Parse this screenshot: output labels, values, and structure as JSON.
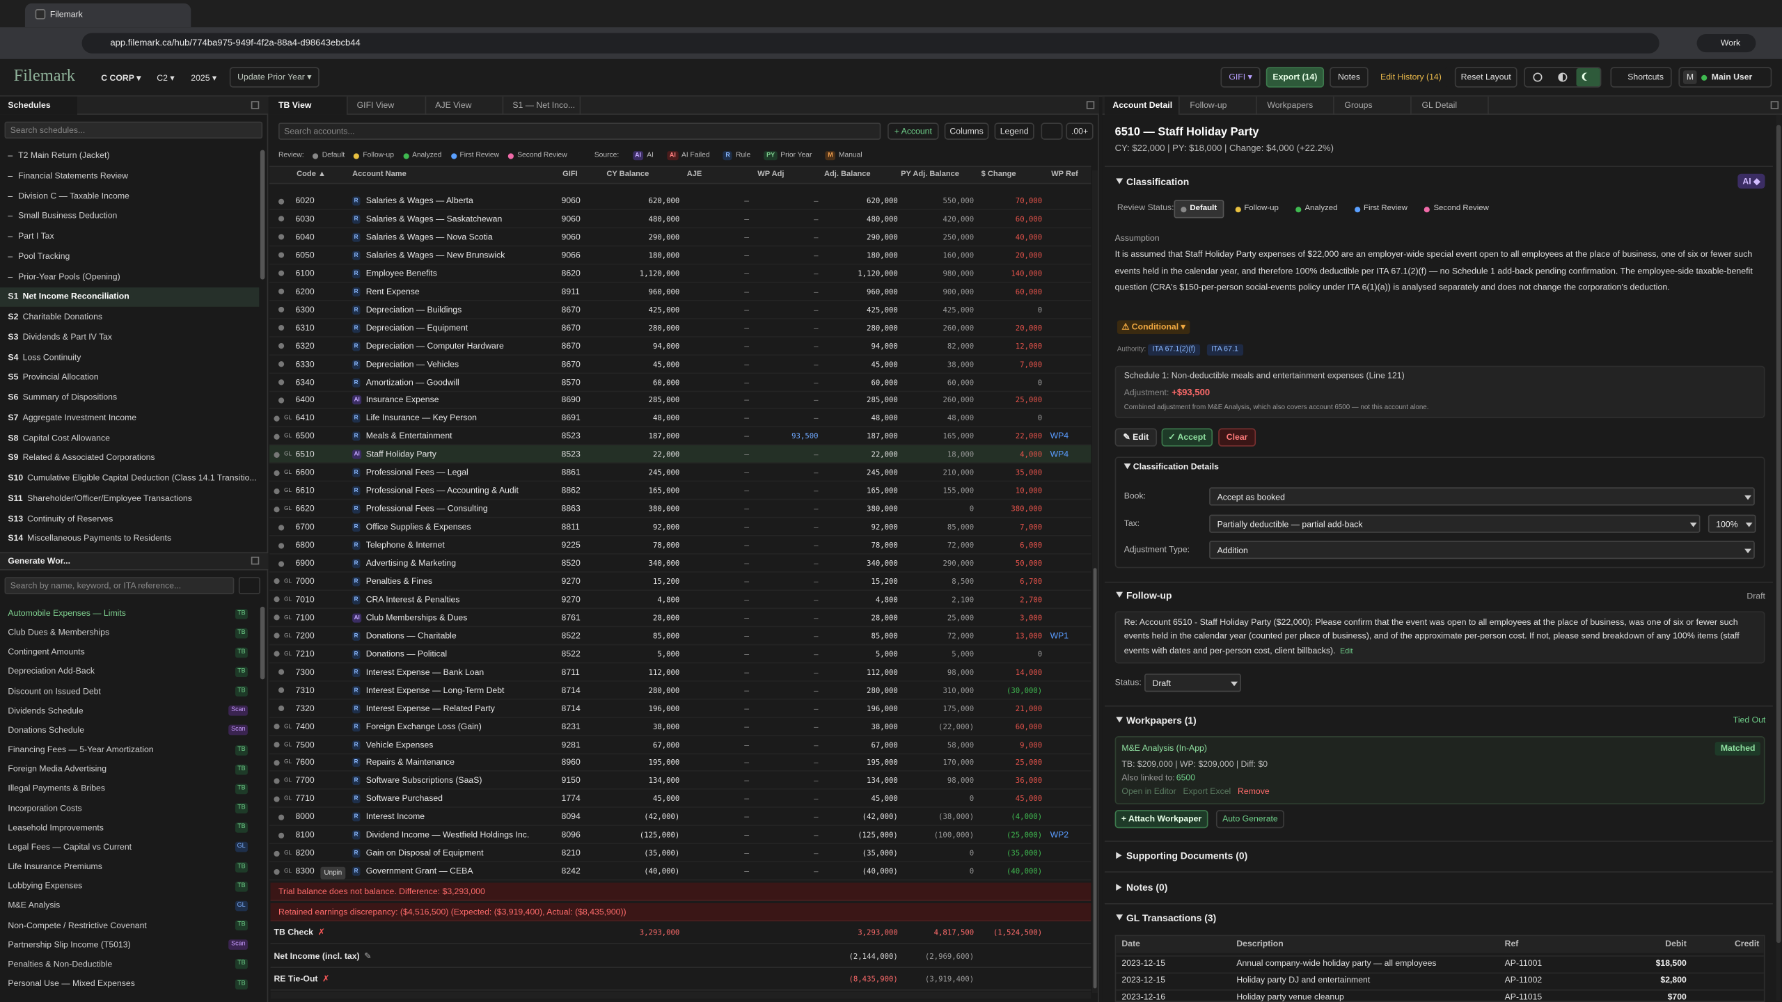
{
  "browser": {
    "tab": "Filemark",
    "url": "app.filemark.ca/hub/774ba975-949f-4f2a-88a4-d98643ebcb44",
    "profile": "Work"
  },
  "app": {
    "logo": "Filemark",
    "entity": "C CORP ▾",
    "form": "C2 ▾",
    "year": "2025 ▾",
    "update": "Update Prior Year ▾",
    "gifi": "GIFI ▾",
    "export": "Export (14)",
    "notes": "Notes",
    "history": "Edit History (14)",
    "reset": "Reset Layout",
    "shortcuts": "Shortcuts",
    "user_initial": "M",
    "user": "Main User"
  },
  "schedules": {
    "title": "Schedules",
    "search": "Search schedules...",
    "items": [
      {
        "code": "–",
        "name": "T2 Main Return (Jacket)"
      },
      {
        "code": "–",
        "name": "Financial Statements Review"
      },
      {
        "code": "–",
        "name": "Division C — Taxable Income"
      },
      {
        "code": "–",
        "name": "Small Business Deduction"
      },
      {
        "code": "–",
        "name": "Part I Tax"
      },
      {
        "code": "–",
        "name": "Pool Tracking"
      },
      {
        "code": "–",
        "name": "Prior-Year Pools (Opening)"
      },
      {
        "code": "S1",
        "name": "Net Income Reconciliation"
      },
      {
        "code": "S2",
        "name": "Charitable Donations"
      },
      {
        "code": "S3",
        "name": "Dividends & Part IV Tax"
      },
      {
        "code": "S4",
        "name": "Loss Continuity"
      },
      {
        "code": "S5",
        "name": "Provincial Allocation"
      },
      {
        "code": "S6",
        "name": "Summary of Dispositions"
      },
      {
        "code": "S7",
        "name": "Aggregate Investment Income"
      },
      {
        "code": "S8",
        "name": "Capital Cost Allowance"
      },
      {
        "code": "S9",
        "name": "Related & Associated Corporations"
      },
      {
        "code": "S10",
        "name": "Cumulative Eligible Capital Deduction (Class 14.1 Transitio..."
      },
      {
        "code": "S11",
        "name": "Shareholder/Officer/Employee Transactions"
      },
      {
        "code": "S13",
        "name": "Continuity of Reserves"
      },
      {
        "code": "S14",
        "name": "Miscellaneous Payments to Residents"
      }
    ]
  },
  "generate": {
    "title": "Generate Wor...",
    "search": "Search by name, keyword, or ITA reference...",
    "items": [
      {
        "name": "Automobile Expenses — Limits",
        "badge": "TB"
      },
      {
        "name": "Club Dues & Memberships",
        "badge": "TB"
      },
      {
        "name": "Contingent Amounts",
        "badge": "TB"
      },
      {
        "name": "Depreciation Add-Back",
        "badge": "TB"
      },
      {
        "name": "Discount on Issued Debt",
        "badge": "TB"
      },
      {
        "name": "Dividends Schedule",
        "badge": "Scan"
      },
      {
        "name": "Donations Schedule",
        "badge": "Scan"
      },
      {
        "name": "Financing Fees — 5-Year Amortization",
        "badge": "TB"
      },
      {
        "name": "Foreign Media Advertising",
        "badge": "TB"
      },
      {
        "name": "Illegal Payments & Bribes",
        "badge": "TB"
      },
      {
        "name": "Incorporation Costs",
        "badge": "TB"
      },
      {
        "name": "Leasehold Improvements",
        "badge": "TB"
      },
      {
        "name": "Legal Fees — Capital vs Current",
        "badge": "GL"
      },
      {
        "name": "Life Insurance Premiums",
        "badge": "TB"
      },
      {
        "name": "Lobbying Expenses",
        "badge": "TB"
      },
      {
        "name": "M&E Analysis",
        "badge": "GL"
      },
      {
        "name": "Non-Compete / Restrictive Covenant",
        "badge": "TB"
      },
      {
        "name": "Partnership Slip Income (T5013)",
        "badge": "Scan"
      },
      {
        "name": "Penalties & Non-Deductible",
        "badge": "TB"
      },
      {
        "name": "Personal Use — Mixed Expenses",
        "badge": "TB"
      }
    ]
  },
  "tb": {
    "tabs": [
      "TB View",
      "GIFI View",
      "AJE View",
      "S1 — Net Inco..."
    ],
    "search": "Search accounts...",
    "add": "+ Account",
    "columns": "Columns",
    "legend": "Legend",
    "decimals": ".00+",
    "review_label": "Review:",
    "review": [
      "Default",
      "Follow-up",
      "Analyzed",
      "First Review",
      "Second Review"
    ],
    "source_label": "Source:",
    "sources": [
      {
        "badge": "AI",
        "name": "AI"
      },
      {
        "badge": "AI",
        "name": "AI Failed"
      },
      {
        "badge": "R",
        "name": "Rule"
      },
      {
        "badge": "PY",
        "name": "Prior Year"
      },
      {
        "badge": "M",
        "name": "Manual"
      }
    ],
    "headers": [
      "Code ▲",
      "Account Name",
      "GIFI",
      "CY Balance",
      "AJE",
      "WP Adj",
      "Adj. Balance",
      "PY Adj. Balance",
      "$ Change",
      "WP Ref"
    ],
    "rows": [
      [
        "6020",
        "R",
        "Salaries & Wages — Alberta",
        "9060",
        "620,000",
        "–",
        "–",
        "620,000",
        "550,000",
        "70,000",
        null,
        null
      ],
      [
        "6030",
        "R",
        "Salaries & Wages — Saskatchewan",
        "9060",
        "480,000",
        "–",
        "–",
        "480,000",
        "420,000",
        "60,000",
        null,
        null
      ],
      [
        "6040",
        "R",
        "Salaries & Wages — Nova Scotia",
        "9060",
        "290,000",
        "–",
        "–",
        "290,000",
        "250,000",
        "40,000",
        null,
        null
      ],
      [
        "6050",
        "R",
        "Salaries & Wages — New Brunswick",
        "9066",
        "180,000",
        "–",
        "–",
        "180,000",
        "160,000",
        "20,000",
        null,
        null
      ],
      [
        "6100",
        "R",
        "Employee Benefits",
        "8620",
        "1,120,000",
        "–",
        "–",
        "1,120,000",
        "980,000",
        "140,000",
        null,
        null
      ],
      [
        "6200",
        "R",
        "Rent Expense",
        "8911",
        "960,000",
        "–",
        "–",
        "960,000",
        "900,000",
        "60,000",
        null,
        null
      ],
      [
        "6300",
        "R",
        "Depreciation — Buildings",
        "8670",
        "425,000",
        "–",
        "–",
        "425,000",
        "425,000",
        "0",
        null,
        null
      ],
      [
        "6310",
        "R",
        "Depreciation — Equipment",
        "8670",
        "280,000",
        "–",
        "–",
        "280,000",
        "260,000",
        "20,000",
        null,
        null
      ],
      [
        "6320",
        "R",
        "Depreciation — Computer Hardware",
        "8670",
        "94,000",
        "–",
        "–",
        "94,000",
        "82,000",
        "12,000",
        null,
        null
      ],
      [
        "6330",
        "R",
        "Depreciation — Vehicles",
        "8670",
        "45,000",
        "–",
        "–",
        "45,000",
        "38,000",
        "7,000",
        null,
        null
      ],
      [
        "6340",
        "R",
        "Amortization — Goodwill",
        "8570",
        "60,000",
        "–",
        "–",
        "60,000",
        "60,000",
        "0",
        null,
        null
      ],
      [
        "6400",
        "AI",
        "Insurance Expense",
        "8690",
        "285,000",
        "–",
        "–",
        "285,000",
        "260,000",
        "25,000",
        null,
        null
      ],
      [
        "6410",
        "R",
        "Life Insurance — Key Person",
        "8691",
        "48,000",
        "–",
        "–",
        "48,000",
        "48,000",
        "0",
        null,
        "GL"
      ],
      [
        "6500",
        "R",
        "Meals & Entertainment",
        "8523",
        "187,000",
        "–",
        "93,500",
        "187,000",
        "165,000",
        "22,000",
        "WP4",
        "GL"
      ],
      [
        "6510",
        "AI",
        "Staff Holiday Party",
        "8523",
        "22,000",
        "–",
        "–",
        "22,000",
        "18,000",
        "4,000",
        "WP4",
        "GL"
      ],
      [
        "6600",
        "R",
        "Professional Fees — Legal",
        "8861",
        "245,000",
        "–",
        "–",
        "245,000",
        "210,000",
        "35,000",
        null,
        "GL"
      ],
      [
        "6610",
        "R",
        "Professional Fees — Accounting & Audit",
        "8862",
        "165,000",
        "–",
        "–",
        "165,000",
        "155,000",
        "10,000",
        null,
        "GL"
      ],
      [
        "6620",
        "R",
        "Professional Fees — Consulting",
        "8863",
        "380,000",
        "–",
        "–",
        "380,000",
        "0",
        "380,000",
        null,
        "GL"
      ],
      [
        "6700",
        "R",
        "Office Supplies & Expenses",
        "8811",
        "92,000",
        "–",
        "–",
        "92,000",
        "85,000",
        "7,000",
        null,
        null
      ],
      [
        "6800",
        "R",
        "Telephone & Internet",
        "9225",
        "78,000",
        "–",
        "–",
        "78,000",
        "72,000",
        "6,000",
        null,
        null
      ],
      [
        "6900",
        "R",
        "Advertising & Marketing",
        "8520",
        "340,000",
        "–",
        "–",
        "340,000",
        "290,000",
        "50,000",
        null,
        null
      ],
      [
        "7000",
        "R",
        "Penalties & Fines",
        "9270",
        "15,200",
        "–",
        "–",
        "15,200",
        "8,500",
        "6,700",
        null,
        "GL"
      ],
      [
        "7010",
        "R",
        "CRA Interest & Penalties",
        "9270",
        "4,800",
        "–",
        "–",
        "4,800",
        "2,100",
        "2,700",
        null,
        "GL"
      ],
      [
        "7100",
        "AI",
        "Club Memberships & Dues",
        "8761",
        "28,000",
        "–",
        "–",
        "28,000",
        "25,000",
        "3,000",
        null,
        "GL"
      ],
      [
        "7200",
        "R",
        "Donations — Charitable",
        "8522",
        "85,000",
        "–",
        "–",
        "85,000",
        "72,000",
        "13,000",
        "WP1",
        "GL"
      ],
      [
        "7210",
        "R",
        "Donations — Political",
        "8522",
        "5,000",
        "–",
        "–",
        "5,000",
        "5,000",
        "0",
        null,
        "GL"
      ],
      [
        "7300",
        "R",
        "Interest Expense — Bank Loan",
        "8711",
        "112,000",
        "–",
        "–",
        "112,000",
        "98,000",
        "14,000",
        null,
        null
      ],
      [
        "7310",
        "R",
        "Interest Expense — Long-Term Debt",
        "8714",
        "280,000",
        "–",
        "–",
        "280,000",
        "310,000",
        "(30,000)",
        null,
        null
      ],
      [
        "7320",
        "R",
        "Interest Expense — Related Party",
        "8714",
        "196,000",
        "–",
        "–",
        "196,000",
        "175,000",
        "21,000",
        null,
        null
      ],
      [
        "7400",
        "R",
        "Foreign Exchange Loss (Gain)",
        "8231",
        "38,000",
        "–",
        "–",
        "38,000",
        "(22,000)",
        "60,000",
        null,
        "GL"
      ],
      [
        "7500",
        "R",
        "Vehicle Expenses",
        "9281",
        "67,000",
        "–",
        "–",
        "67,000",
        "58,000",
        "9,000",
        null,
        "GL"
      ],
      [
        "7600",
        "R",
        "Repairs & Maintenance",
        "8960",
        "195,000",
        "–",
        "–",
        "195,000",
        "170,000",
        "25,000",
        null,
        "GL"
      ],
      [
        "7700",
        "R",
        "Software Subscriptions (SaaS)",
        "9150",
        "134,000",
        "–",
        "–",
        "134,000",
        "98,000",
        "36,000",
        null,
        "GL"
      ],
      [
        "7710",
        "R",
        "Software Purchased",
        "1774",
        "45,000",
        "–",
        "–",
        "45,000",
        "0",
        "45,000",
        null,
        "GL"
      ],
      [
        "8000",
        "R",
        "Interest Income",
        "8094",
        "(42,000)",
        "–",
        "–",
        "(42,000)",
        "(38,000)",
        "(4,000)",
        null,
        null
      ],
      [
        "8100",
        "R",
        "Dividend Income — Westfield Holdings Inc.",
        "8096",
        "(125,000)",
        "–",
        "–",
        "(125,000)",
        "(100,000)",
        "(25,000)",
        "WP2",
        null
      ],
      [
        "8200",
        "R",
        "Gain on Disposal of Equipment",
        "8210",
        "(35,000)",
        "–",
        "–",
        "(35,000)",
        "0",
        "(35,000)",
        null,
        "GL"
      ],
      [
        "8300",
        "R",
        "Government Grant — CEBA",
        "8242",
        "(40,000)",
        "–",
        "–",
        "(40,000)",
        "0",
        "(40,000)",
        null,
        "GL"
      ]
    ],
    "unpin": "Unpin",
    "errors": [
      "Trial balance does not balance. Difference: $3,293,000",
      "Retained earnings discrepancy: ($4,516,500) (Expected: ($3,919,400), Actual: ($8,435,900))"
    ],
    "totals": [
      {
        "label": "TB Check",
        "icon": "✗",
        "cy": "3,293,000",
        "adj": "3,293,000",
        "py": "4,817,500",
        "change": "(1,524,500)"
      },
      {
        "label": "Net Income (incl. tax)",
        "icon": "✎",
        "adj": "(2,144,000)",
        "py": "(2,969,600)"
      },
      {
        "label": "RE Tie-Out",
        "icon": "✗",
        "adj": "(8,435,900)",
        "py": "(3,919,400)"
      }
    ]
  },
  "detail": {
    "tabs": [
      "Account Detail",
      "Follow-up",
      "Workpapers",
      "Groups",
      "GL Detail"
    ],
    "title": "6510 — Staff Holiday Party",
    "summary": "CY: $22,000 | PY: $18,000 | Change: $4,000 (+22.2%)",
    "classification": "Classification",
    "ai": "AI ◆",
    "review_label": "Review Status:",
    "review": [
      "Default",
      "Follow-up",
      "Analyzed",
      "First Review",
      "Second Review"
    ],
    "assumption_label": "Assumption",
    "assumption": "It is assumed that Staff Holiday Party expenses of $22,000 are an employer-wide special event open to all employees at the place of business, one of six or fewer such events held in the calendar year, and therefore 100% deductible per ITA 67.1(2)(f) — no Schedule 1 add-back pending confirmation. The employee-side taxable-benefit question (CRA's $150-per-person social-events policy under ITA 6(1)(a)) is analysed separately and does not change the corporation's deduction.",
    "conditional": "⚠ Conditional ▾",
    "authority_label": "Authority:",
    "authorities": [
      "ITA 67.1(2)(f)",
      "ITA 67.1"
    ],
    "schedule_line": "Schedule 1: Non-deductible meals and entertainment expenses (Line 121)",
    "adjustment_label": "Adjustment:",
    "adjustment": "+$93,500",
    "adjustment_note": "Combined adjustment from M&E Analysis, which also covers account 6500 — not this account alone.",
    "actions": [
      "✎ Edit",
      "✓ Accept",
      "Clear"
    ],
    "details_title": "Classification Details",
    "fields": [
      {
        "label": "Book:",
        "value": "Accept as booked"
      },
      {
        "label": "Tax:",
        "value": "Partially deductible — partial add-back",
        "extra": "100%"
      },
      {
        "label": "Adjustment Type:",
        "value": "Addition"
      }
    ],
    "followup_title": "Follow-up",
    "followup_state": "Draft",
    "followup_text": "Re: Account 6510 - Staff Holiday Party ($22,000): Please confirm that the event was open to all employees at the place of business, was one of six or fewer such events held in the calendar year (counted per place of business), and of the approximate per-person cost. If not, please send breakdown of any 100% items (staff events with dates and per-person cost, client billbacks).",
    "followup_edit": "Edit",
    "status_label": "Status:",
    "status": "Draft",
    "workpapers_title": "Workpapers (1)",
    "workpapers_state": "Tied Out",
    "wp_name": "M&E Analysis (In-App)",
    "wp_badge": "Matched",
    "wp_summary": "TB: $209,000 | WP: $209,000 | Diff: $0",
    "wp_linked_label": "Also linked to:",
    "wp_linked": "6500",
    "wp_links": [
      "Open in Editor",
      "Export Excel",
      "Remove"
    ],
    "wp_buttons": [
      "+ Attach Workpaper",
      "Auto Generate"
    ],
    "supporting": "Supporting Documents (0)",
    "notes": "Notes (0)",
    "gl_title": "GL Transactions (3)",
    "gl_headers": [
      "Date",
      "Description",
      "Ref",
      "Debit",
      "Credit"
    ],
    "gl_rows": [
      [
        "2023-12-15",
        "Annual company-wide holiday party — all employees",
        "AP-11001",
        "$18,500"
      ],
      [
        "2023-12-15",
        "Holiday party DJ and entertainment",
        "AP-11002",
        "$2,800"
      ],
      [
        "2023-12-16",
        "Holiday party venue cleanup",
        "AP-11015",
        "$700"
      ]
    ]
  }
}
